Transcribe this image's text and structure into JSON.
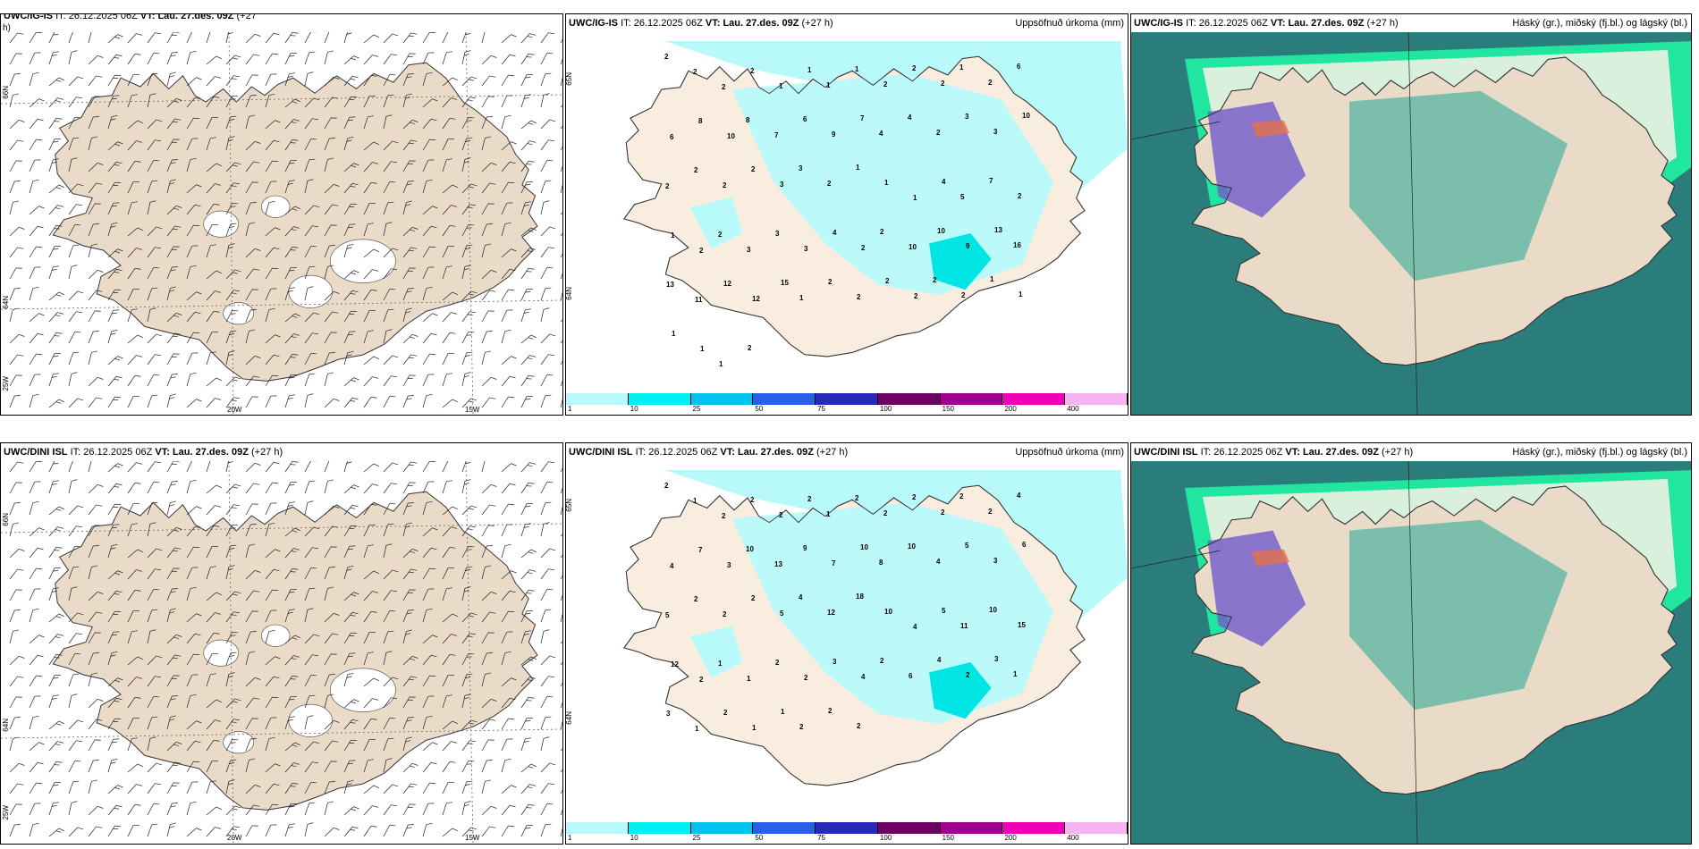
{
  "colors": {
    "land": "#eadbc8",
    "land_precip": "#f9ede0",
    "sea": "#ffffff",
    "precip_light": "#b8fafa",
    "precip_mid": "#00e4e4",
    "cloud_high": "#2a7d7a",
    "cloud_mid": "#66b8a6",
    "cloud_low_edge": "#21e6a0",
    "cloud_purple": "#6f5acc",
    "cloud_orange": "#e6704a"
  },
  "rows": [
    {
      "panels": [
        {
          "model": "UWC/IG-IS",
          "it_prefix": "IT:",
          "it": "26.12.2025 06Z",
          "vt_prefix": "VT:",
          "vt": "Lau. 27.des. 09Z",
          "lead": "(+27",
          "lead2": "h)",
          "right_title": "",
          "lat_labels": [
            "66N",
            "64N",
            "25W"
          ],
          "lon_labels": [
            "20W",
            "15W"
          ]
        },
        {
          "model": "UWC/IG-IS",
          "it_prefix": "IT:",
          "it": "26.12.2025 06Z",
          "vt_prefix": "VT:",
          "vt": "Lau. 27.des. 09Z",
          "lead": "(+27 h)",
          "right_title": "Uppsöfnuð úrkoma (mm)",
          "lat_labels": [
            "65N",
            "64N"
          ],
          "precip_values": [
            "2",
            "2",
            "2",
            "2",
            "1",
            "1",
            "1",
            "1",
            "2",
            "2",
            "2",
            "1",
            "2",
            "6",
            "6",
            "8",
            "10",
            "8",
            "7",
            "6",
            "9",
            "7",
            "4",
            "4",
            "2",
            "3",
            "3",
            "10",
            "2",
            "2",
            "2",
            "2",
            "3",
            "3",
            "2",
            "1",
            "1",
            "1",
            "4",
            "5",
            "7",
            "2",
            "1",
            "2",
            "2",
            "3",
            "3",
            "3",
            "4",
            "2",
            "2",
            "10",
            "10",
            "9",
            "13",
            "16",
            "13",
            "11",
            "12",
            "12",
            "15",
            "1",
            "2",
            "2",
            "2",
            "2",
            "2",
            "2",
            "1",
            "1",
            "1",
            "1",
            "1",
            "2"
          ]
        },
        {
          "model": "UWC/IG-IS",
          "it_prefix": "IT:",
          "it": "26.12.2025 06Z",
          "vt_prefix": "VT:",
          "vt": "Lau. 27.des. 09Z",
          "lead": "(+27 h)",
          "right_title": "Háský (gr.), miðský (fj.bl.) og lágský (bl.)"
        }
      ],
      "colorbar": {
        "colors": [
          "#b8fafa",
          "#00f0f0",
          "#00c4f0",
          "#2a60e8",
          "#2a2ab8",
          "#6e0060",
          "#a0008c",
          "#f000b4",
          "#f5b4f0"
        ],
        "ticks": [
          "1",
          "10",
          "25",
          "50",
          "75",
          "100",
          "150",
          "200",
          "400"
        ]
      }
    },
    {
      "panels": [
        {
          "model": "UWC/DINI ISL",
          "it_prefix": "IT:",
          "it": "26.12.2025 06Z",
          "vt_prefix": "VT:",
          "vt": "Lau. 27.des. 09Z",
          "lead": "(+27 h)",
          "right_title": "",
          "lat_labels": [
            "66N",
            "64N",
            "25W"
          ],
          "lon_labels": [
            "20W",
            "15W"
          ]
        },
        {
          "model": "UWC/DINI ISL",
          "it_prefix": "IT:",
          "it": "26.12.2025 06Z",
          "vt_prefix": "VT:",
          "vt": "Lau. 27.des. 09Z",
          "lead": "(+27 h)",
          "right_title": "Uppsöfnuð úrkoma (mm)",
          "lat_labels": [
            "65N",
            "64N"
          ],
          "precip_values": [
            "2",
            "1",
            "2",
            "2",
            "2",
            "2",
            "1",
            "2",
            "2",
            "2",
            "2",
            "2",
            "2",
            "4",
            "4",
            "7",
            "3",
            "10",
            "13",
            "9",
            "7",
            "10",
            "8",
            "10",
            "4",
            "5",
            "3",
            "6",
            "5",
            "2",
            "2",
            "2",
            "5",
            "4",
            "12",
            "18",
            "10",
            "4",
            "5",
            "11",
            "10",
            "15",
            "12",
            "2",
            "1",
            "1",
            "2",
            "2",
            "3",
            "4",
            "2",
            "6",
            "4",
            "2",
            "3",
            "1",
            "3",
            "1",
            "2",
            "1",
            "1",
            "2",
            "2",
            "2"
          ]
        },
        {
          "model": "UWC/DINI ISL",
          "it_prefix": "IT:",
          "it": "26.12.2025 06Z",
          "vt_prefix": "VT:",
          "vt": "Lau. 27.des. 09Z",
          "lead": "(+27 h)",
          "right_title": "Háský (gr.), miðský (fj.bl.) og lágský (bl.)"
        }
      ],
      "colorbar": {
        "colors": [
          "#b8fafa",
          "#00f0f0",
          "#00c4f0",
          "#2a60e8",
          "#2a2ab8",
          "#6e0060",
          "#a0008c",
          "#f000b4",
          "#f5b4f0"
        ],
        "ticks": [
          "1",
          "10",
          "25",
          "50",
          "75",
          "100",
          "150",
          "200",
          "400"
        ]
      }
    }
  ]
}
